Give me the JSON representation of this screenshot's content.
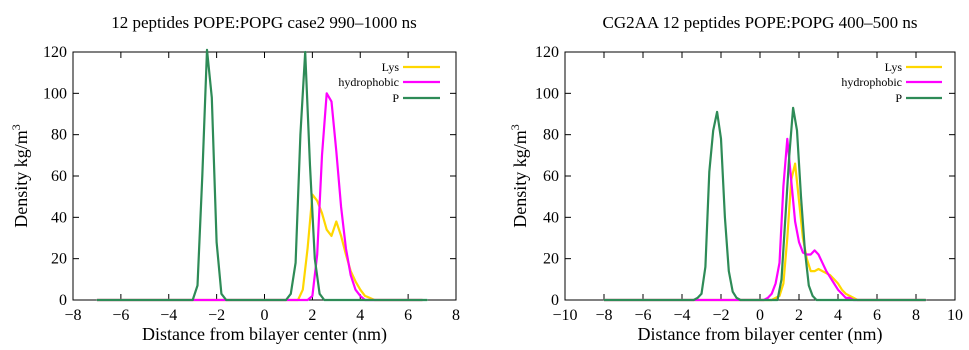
{
  "chart_data": [
    {
      "type": "line",
      "title": "12 peptides POPE:POPG case2 990–1000 ns",
      "xlabel": "Distance from bilayer center (nm)",
      "ylabel": "Density kg/m",
      "ylabel_sup": "3",
      "xlim": [
        -8,
        8
      ],
      "ylim": [
        0,
        120
      ],
      "xticks": [
        "−8",
        "−6",
        "−4",
        "−2",
        "0",
        "2",
        "4",
        "6",
        "8"
      ],
      "yticks": [
        "0",
        "20",
        "40",
        "60",
        "80",
        "100",
        "120"
      ],
      "grid": false,
      "legend_position": "top-right",
      "series": [
        {
          "name": "Lys",
          "color": "#FFD700",
          "x": [
            -7,
            1.4,
            1.6,
            1.8,
            2.0,
            2.2,
            2.4,
            2.6,
            2.8,
            3.0,
            3.2,
            3.4,
            3.6,
            3.8,
            4.0,
            4.2,
            4.4,
            4.6,
            6.6
          ],
          "y": [
            0,
            0,
            5,
            25,
            51,
            48,
            42,
            34,
            31,
            38,
            31,
            22,
            14,
            9,
            5,
            2,
            1,
            0,
            0
          ]
        },
        {
          "name": "hydrophobic",
          "color": "#FF00FF",
          "x": [
            -7,
            1.8,
            2.0,
            2.2,
            2.4,
            2.6,
            2.8,
            3.0,
            3.2,
            3.4,
            3.6,
            3.8,
            4.0,
            4.2,
            6.6
          ],
          "y": [
            0,
            0,
            2,
            22,
            70,
            100,
            96,
            72,
            45,
            25,
            12,
            5,
            2,
            0,
            0
          ]
        },
        {
          "name": "P",
          "color": "#2E8B57",
          "x": [
            -7,
            -3.0,
            -2.8,
            -2.6,
            -2.4,
            -2.2,
            -2.0,
            -1.8,
            -1.6,
            -1.4,
            0.9,
            1.1,
            1.3,
            1.5,
            1.7,
            1.9,
            2.1,
            2.3,
            2.5,
            6.8
          ],
          "y": [
            0,
            0,
            7,
            60,
            121,
            98,
            28,
            3,
            0,
            0,
            0,
            3,
            18,
            80,
            120,
            65,
            20,
            3,
            0,
            0
          ]
        }
      ]
    },
    {
      "type": "line",
      "title": "CG2AA 12 peptides POPE:POPG 400–500 ns",
      "xlabel": "Distance from bilayer center (nm)",
      "ylabel": "Density kg/m",
      "ylabel_sup": "3",
      "xlim": [
        -10,
        10
      ],
      "ylim": [
        0,
        120
      ],
      "xticks": [
        "−10",
        "−8",
        "−6",
        "−4",
        "−2",
        "0",
        "2",
        "4",
        "6",
        "8",
        "10"
      ],
      "yticks": [
        "0",
        "20",
        "40",
        "60",
        "80",
        "100",
        "120"
      ],
      "grid": false,
      "legend_position": "top-right",
      "series": [
        {
          "name": "Lys",
          "color": "#FFD700",
          "x": [
            -8,
            0.6,
            0.8,
            1.0,
            1.2,
            1.4,
            1.6,
            1.8,
            2.0,
            2.2,
            2.4,
            2.6,
            2.8,
            3.0,
            3.2,
            3.4,
            3.6,
            3.8,
            4.0,
            4.2,
            4.4,
            4.6,
            4.8,
            5.0,
            8.5
          ],
          "y": [
            0,
            0,
            1,
            2,
            8,
            30,
            58,
            66,
            48,
            30,
            20,
            14,
            14,
            15,
            14,
            13,
            12,
            10,
            8,
            5,
            3,
            2,
            1,
            0,
            0
          ]
        },
        {
          "name": "hydrophobic",
          "color": "#FF00FF",
          "x": [
            -8,
            0.2,
            0.4,
            0.6,
            0.8,
            1.0,
            1.2,
            1.4,
            1.6,
            1.8,
            2.0,
            2.2,
            2.4,
            2.6,
            2.8,
            3.0,
            3.2,
            3.4,
            3.6,
            3.8,
            4.0,
            4.2,
            4.4,
            4.6,
            4.8,
            8.5
          ],
          "y": [
            0,
            0,
            1,
            3,
            8,
            18,
            55,
            78,
            58,
            38,
            28,
            23,
            22,
            22,
            24,
            22,
            18,
            14,
            11,
            8,
            5,
            3,
            1,
            1,
            0,
            0
          ]
        },
        {
          "name": "P",
          "color": "#2E8B57",
          "x": [
            -8,
            -3.4,
            -3.2,
            -3.0,
            -2.8,
            -2.6,
            -2.4,
            -2.2,
            -2.0,
            -1.8,
            -1.6,
            -1.4,
            -1.2,
            -1.0,
            -0.8,
            0.9,
            1.1,
            1.3,
            1.5,
            1.7,
            1.9,
            2.1,
            2.3,
            2.5,
            2.7,
            2.9,
            3.1,
            8.5
          ],
          "y": [
            0,
            0,
            1,
            3,
            16,
            62,
            82,
            91,
            78,
            40,
            14,
            4,
            1,
            0,
            0,
            0,
            10,
            40,
            70,
            93,
            82,
            50,
            24,
            7,
            2,
            0,
            0,
            0
          ]
        }
      ]
    }
  ]
}
